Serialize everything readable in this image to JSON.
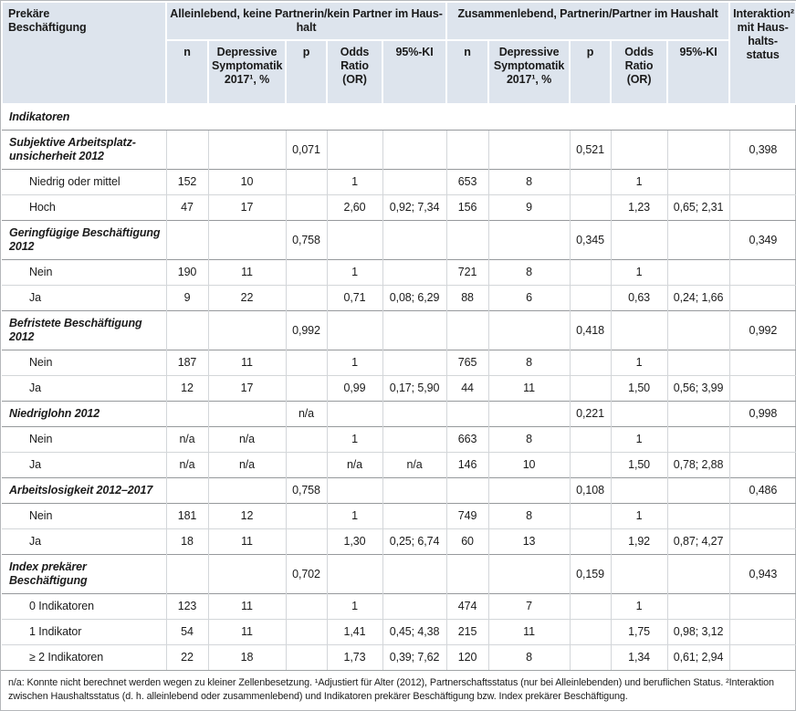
{
  "table": {
    "col1_header": [
      "Prekäre",
      "Beschäftigung"
    ],
    "group_headers": [
      [
        "Alleinlebend, keine Partnerin/kein Partner im Haus-",
        "halt"
      ],
      [
        "Zusammenlebend, Partnerin/Partner im Haushalt"
      ]
    ],
    "subheaders": [
      "n",
      "Depressive Symptomatik 2017¹, %",
      "p",
      "Odds Ratio (OR)",
      "95%-KI"
    ],
    "interaction_header": [
      "Interaktion²",
      "mit Haus-",
      "halts-",
      "status"
    ],
    "rows": [
      {
        "type": "full",
        "label": "Indikatoren",
        "cells": []
      },
      {
        "type": "section",
        "label": [
          "Subjektive Arbeitsplatz-",
          "unsicherheit 2012"
        ],
        "cells": [
          "",
          "",
          "0,071",
          "",
          "",
          "",
          "",
          "0,521",
          "",
          "",
          "0,398"
        ]
      },
      {
        "type": "sub",
        "label": "Niedrig oder mittel",
        "cells": [
          "152",
          "10",
          "",
          "1",
          "",
          "653",
          "8",
          "",
          "1",
          "",
          ""
        ]
      },
      {
        "type": "sub",
        "label": "Hoch",
        "cells": [
          "47",
          "17",
          "",
          "2,60",
          "0,92; 7,34",
          "156",
          "9",
          "",
          "1,23",
          "0,65; 2,31",
          ""
        ]
      },
      {
        "type": "section",
        "label": "Geringfügige Beschäftigung 2012",
        "cells": [
          "",
          "",
          "0,758",
          "",
          "",
          "",
          "",
          "0,345",
          "",
          "",
          "0,349"
        ]
      },
      {
        "type": "sub",
        "label": "Nein",
        "cells": [
          "190",
          "11",
          "",
          "1",
          "",
          "721",
          "8",
          "",
          "1",
          "",
          ""
        ]
      },
      {
        "type": "sub",
        "label": "Ja",
        "cells": [
          "9",
          "22",
          "",
          "0,71",
          "0,08; 6,29",
          "88",
          "6",
          "",
          "0,63",
          "0,24; 1,66",
          ""
        ]
      },
      {
        "type": "section",
        "label": "Befristete Beschäftigung 2012",
        "cells": [
          "",
          "",
          "0,992",
          "",
          "",
          "",
          "",
          "0,418",
          "",
          "",
          "0,992"
        ]
      },
      {
        "type": "sub",
        "label": "Nein",
        "cells": [
          "187",
          "11",
          "",
          "1",
          "",
          "765",
          "8",
          "",
          "1",
          "",
          ""
        ]
      },
      {
        "type": "sub",
        "label": "Ja",
        "cells": [
          "12",
          "17",
          "",
          "0,99",
          "0,17; 5,90",
          "44",
          "11",
          "",
          "1,50",
          "0,56; 3,99",
          ""
        ]
      },
      {
        "type": "section",
        "label": "Niedriglohn 2012",
        "cells": [
          "",
          "",
          "n/a",
          "",
          "",
          "",
          "",
          "0,221",
          "",
          "",
          "0,998"
        ]
      },
      {
        "type": "sub",
        "label": "Nein",
        "cells": [
          "n/a",
          "n/a",
          "",
          "1",
          "",
          "663",
          "8",
          "",
          "1",
          "",
          ""
        ]
      },
      {
        "type": "sub",
        "label": "Ja",
        "cells": [
          "n/a",
          "n/a",
          "",
          "n/a",
          "n/a",
          "146",
          "10",
          "",
          "1,50",
          "0,78; 2,88",
          ""
        ]
      },
      {
        "type": "section",
        "label": "Arbeitslosigkeit 2012–2017",
        "cells": [
          "",
          "",
          "0,758",
          "",
          "",
          "",
          "",
          "0,108",
          "",
          "",
          "0,486"
        ]
      },
      {
        "type": "sub",
        "label": "Nein",
        "cells": [
          "181",
          "12",
          "",
          "1",
          "",
          "749",
          "8",
          "",
          "1",
          "",
          ""
        ]
      },
      {
        "type": "sub",
        "label": "Ja",
        "cells": [
          "18",
          "11",
          "",
          "1,30",
          "0,25; 6,74",
          "60",
          "13",
          "",
          "1,92",
          "0,87; 4,27",
          ""
        ]
      },
      {
        "type": "section",
        "label": "Index prekärer Beschäftigung",
        "cells": [
          "",
          "",
          "0,702",
          "",
          "",
          "",
          "",
          "0,159",
          "",
          "",
          "0,943"
        ]
      },
      {
        "type": "sub",
        "label": "0 Indikatoren",
        "cells": [
          "123",
          "11",
          "",
          "1",
          "",
          "474",
          "7",
          "",
          "1",
          "",
          ""
        ]
      },
      {
        "type": "sub",
        "label": "1 Indikator",
        "cells": [
          "54",
          "11",
          "",
          "1,41",
          "0,45; 4,38",
          "215",
          "11",
          "",
          "1,75",
          "0,98; 3,12",
          ""
        ]
      },
      {
        "type": "sub",
        "label": "≥ 2 Indikatoren",
        "cells": [
          "22",
          "18",
          "",
          "1,73",
          "0,39; 7,62",
          "120",
          "8",
          "",
          "1,34",
          "0,61; 2,94",
          ""
        ]
      }
    ]
  },
  "footnote": "n/a: Konnte nicht berechnet werden wegen zu kleiner Zellenbesetzung. ¹Adjustiert für Alter (2012), Partnerschaftsstatus (nur bei Alleinlebenden) und beruflichen Status. ²Interaktion zwischen Haushaltsstatus (d. h. alleinlebend oder zusammenlebend) und Indikatoren prekärer Beschäftigung bzw. Index prekärer Beschäftigung."
}
